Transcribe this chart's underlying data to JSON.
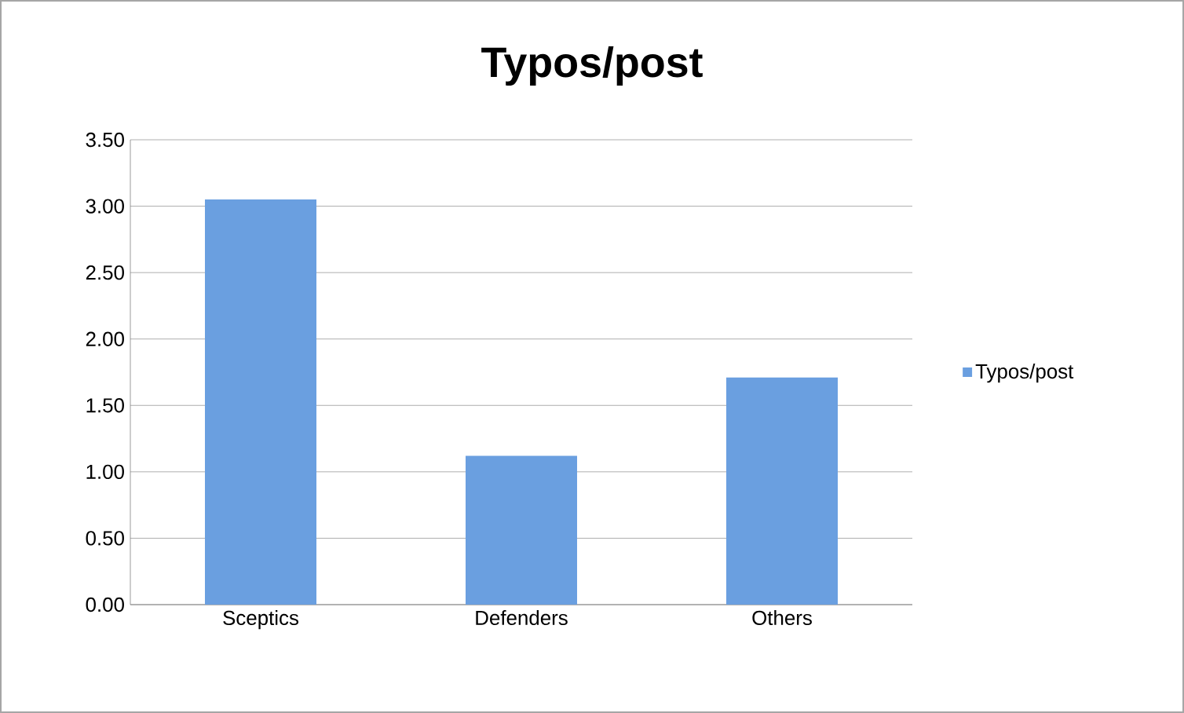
{
  "chart_data": {
    "type": "bar",
    "title": "Typos/post",
    "categories": [
      "Sceptics",
      "Defenders",
      "Others"
    ],
    "series": [
      {
        "name": "Typos/post",
        "color": "#6a9fe0",
        "values": [
          3.05,
          1.12,
          1.71
        ]
      }
    ],
    "ylim": [
      0,
      3.5
    ],
    "yticks": [
      {
        "value": 0,
        "label": "0.00"
      },
      {
        "value": 0.5,
        "label": "0.50"
      },
      {
        "value": 1,
        "label": "1.00"
      },
      {
        "value": 1.5,
        "label": "1.50"
      },
      {
        "value": 2,
        "label": "2.00"
      },
      {
        "value": 2.5,
        "label": "2.50"
      },
      {
        "value": 3,
        "label": "3.00"
      },
      {
        "value": 3.5,
        "label": "3.50"
      }
    ],
    "grid": "y",
    "legend": "right"
  }
}
